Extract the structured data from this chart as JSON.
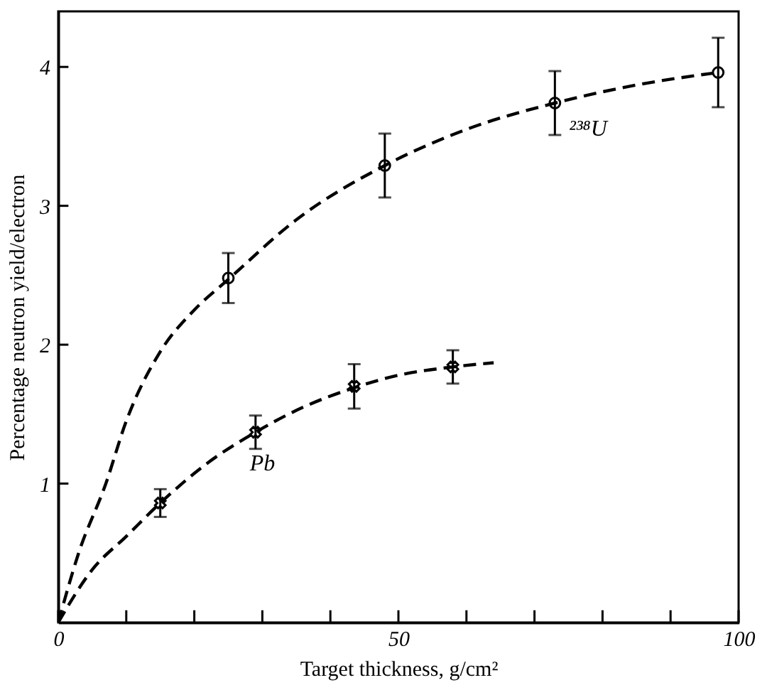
{
  "chart_data": {
    "type": "scatter",
    "xlabel": "Target thickness, g/cm²",
    "ylabel": "Percentage neutron yield/electron",
    "xlim": [
      0,
      100
    ],
    "ylim": [
      0,
      4.4
    ],
    "xticks": [
      0,
      {
        "value": 10,
        "label": null
      },
      {
        "value": 20,
        "label": null
      },
      {
        "value": 30,
        "label": null
      },
      {
        "value": 40,
        "label": null
      },
      50,
      {
        "value": 60,
        "label": null
      },
      {
        "value": 70,
        "label": null
      },
      {
        "value": 80,
        "label": null
      },
      {
        "value": 90,
        "label": null
      },
      100
    ],
    "yticks": [
      1,
      2,
      3,
      4
    ],
    "grid": false,
    "legend": false,
    "series": [
      {
        "type": "line",
        "color": "#000000",
        "marker": "none",
        "line_style": "dashed",
        "x": [
          0,
          3,
          7,
          10,
          15,
          20,
          25,
          35,
          48,
          60,
          73,
          85,
          97
        ],
        "values": [
          0,
          0.5,
          1.0,
          1.45,
          1.95,
          2.25,
          2.47,
          2.9,
          3.29,
          3.55,
          3.74,
          3.87,
          3.96
        ]
      },
      {
        "type": "line",
        "color": "#000000",
        "marker": "none",
        "line_style": "dashed",
        "x": [
          0,
          5,
          10,
          15,
          22,
          29,
          36,
          43.5,
          50,
          58,
          64
        ],
        "values": [
          0,
          0.38,
          0.62,
          0.86,
          1.15,
          1.37,
          1.55,
          1.69,
          1.78,
          1.84,
          1.87
        ]
      },
      {
        "name": "²³⁸U",
        "color": "#000000",
        "marker": "circle",
        "x": [
          25,
          48,
          73,
          97
        ],
        "values": [
          2.48,
          3.29,
          3.74,
          3.96
        ],
        "errors": [
          0.18,
          0.23,
          0.23,
          0.25
        ]
      },
      {
        "name": "Pb",
        "color": "#000000",
        "marker": "cross",
        "x": [
          15,
          29,
          43.5,
          58
        ],
        "values": [
          0.86,
          1.37,
          1.7,
          1.84
        ],
        "errors": [
          0.1,
          0.12,
          0.16,
          0.12
        ]
      }
    ]
  }
}
